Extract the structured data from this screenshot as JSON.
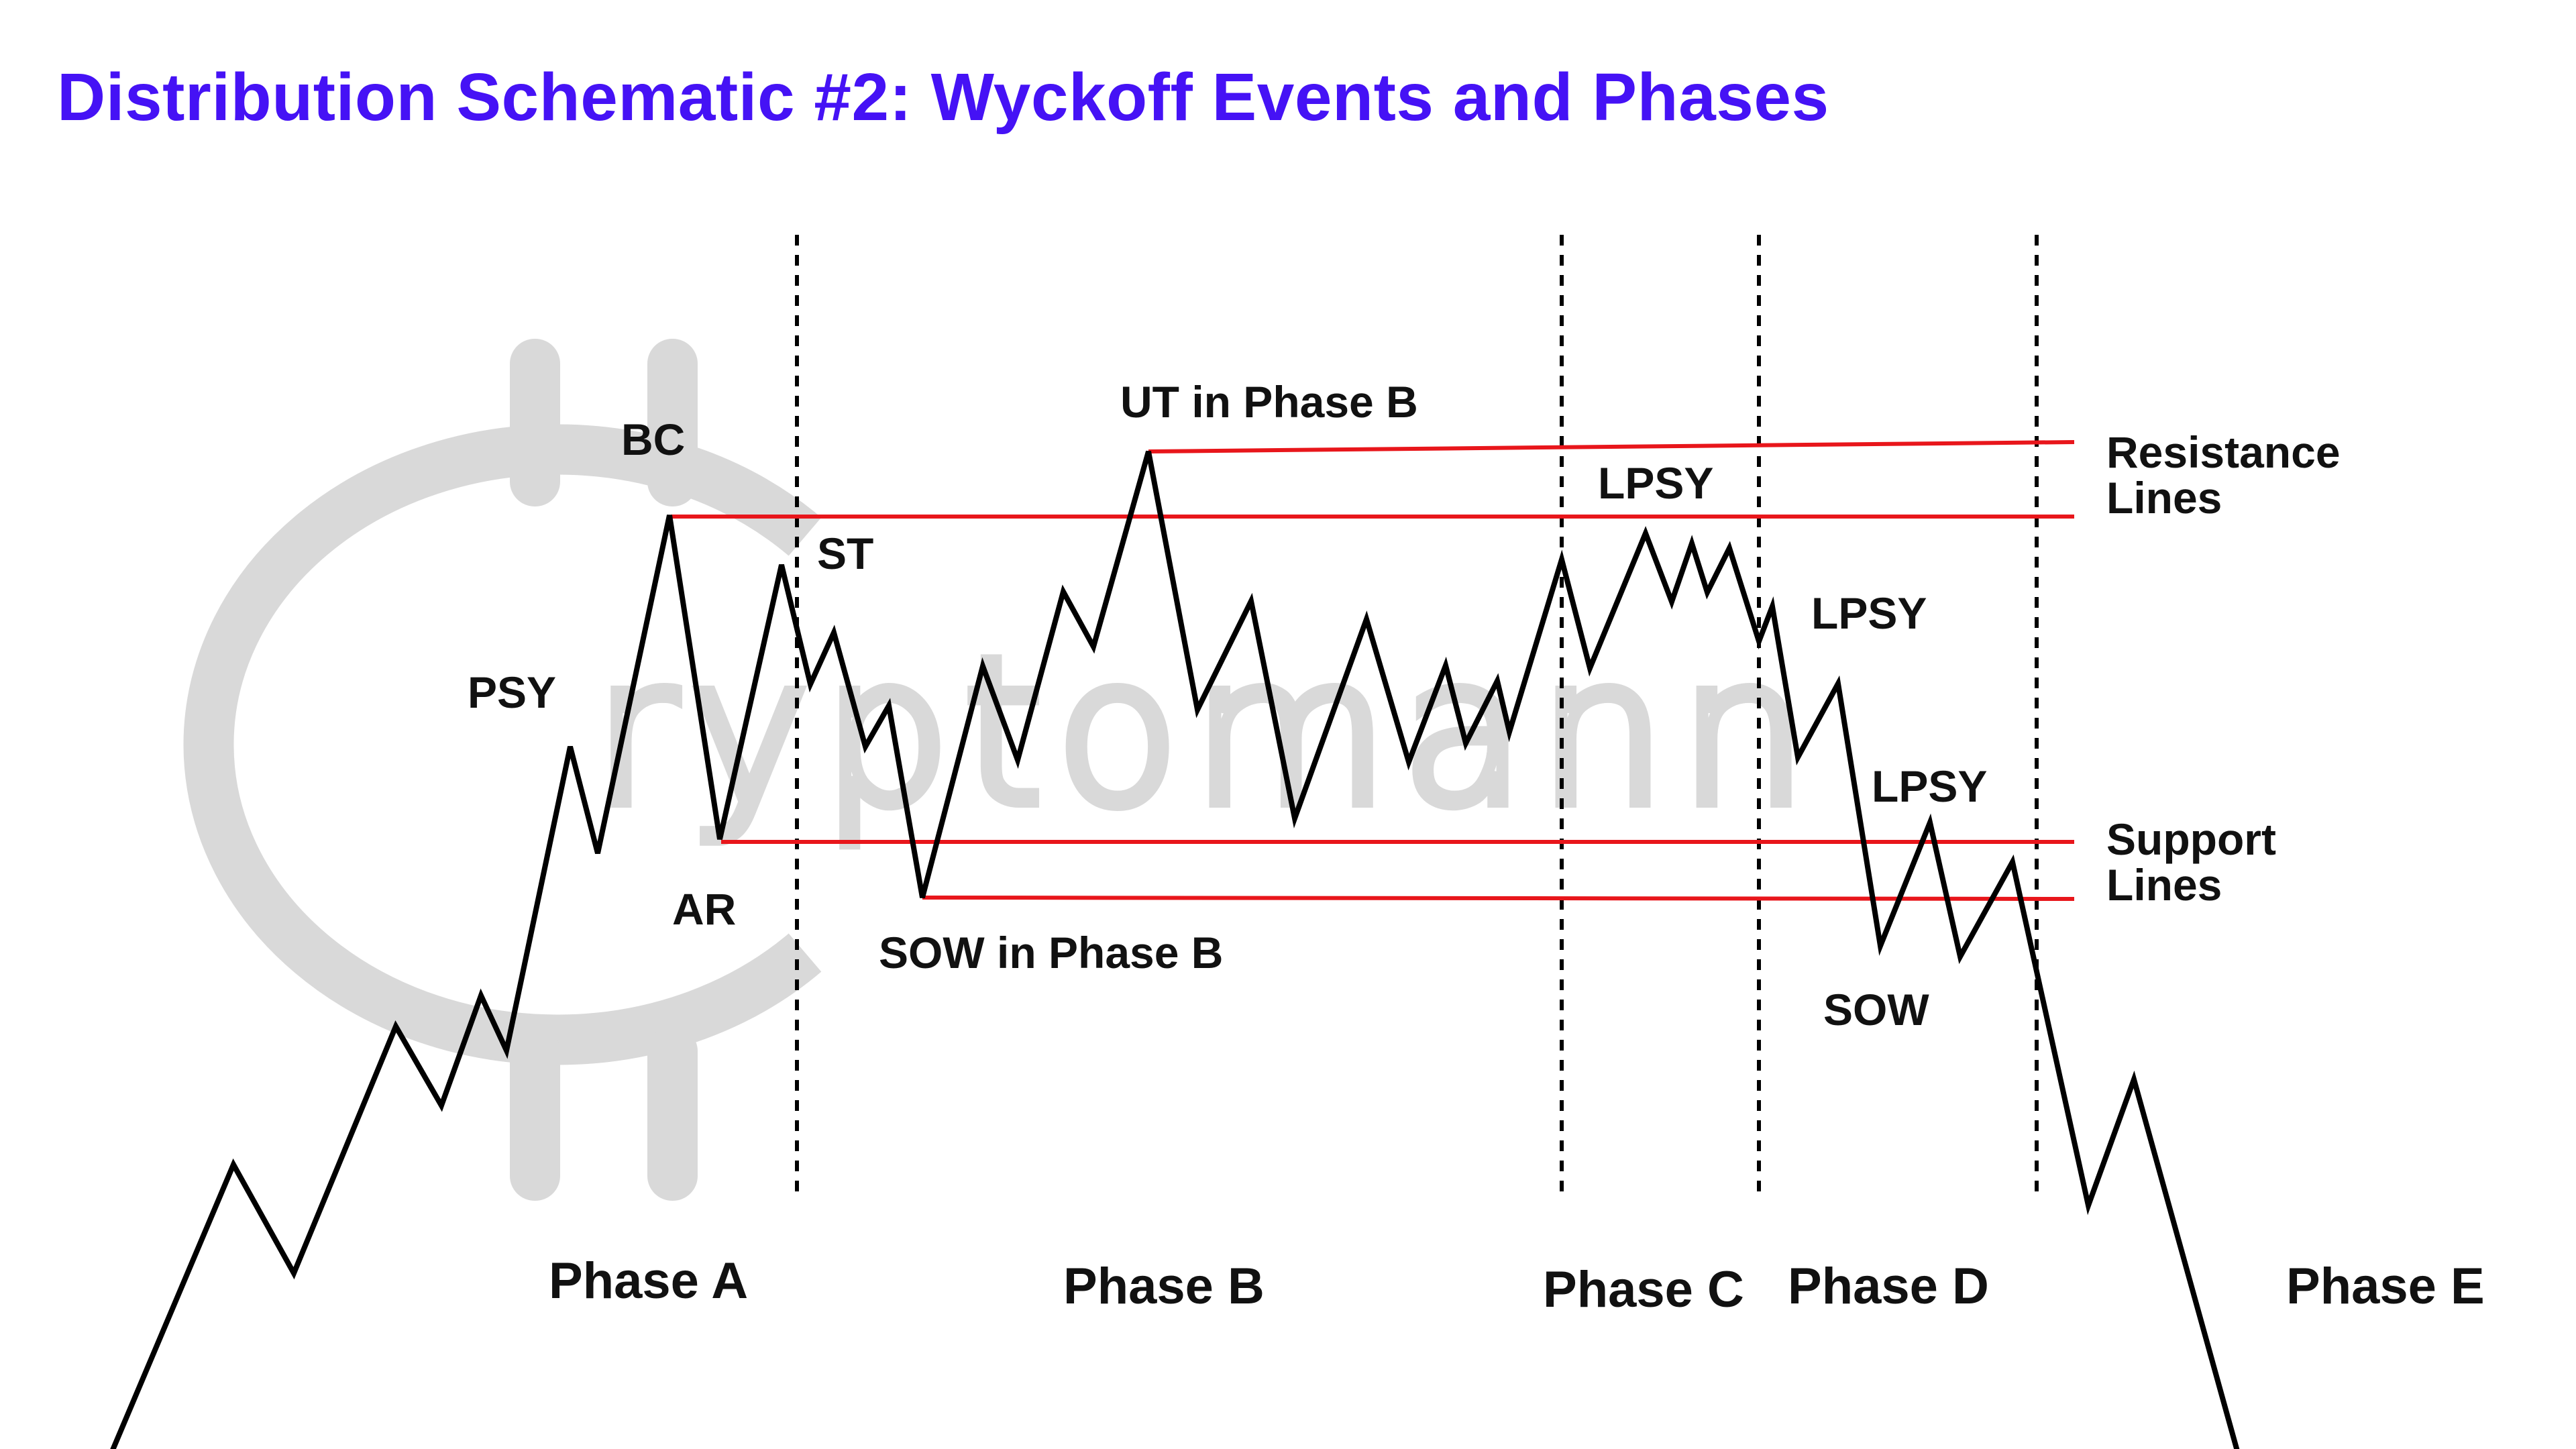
{
  "title": "Distribution Schematic #2: Wyckoff Events and Phases",
  "watermark": {
    "text": "ryptomann",
    "color": "#d9d9d9"
  },
  "colors": {
    "title": "#4512f5",
    "price_line": "#000000",
    "support_resistance": "#e8161b",
    "divider": "#000000"
  },
  "events": {
    "psy": "PSY",
    "bc": "BC",
    "ar": "AR",
    "st": "ST",
    "sow_phase_b": "SOW in Phase B",
    "ut_phase_b": "UT in Phase B",
    "lpsy_1": "LPSY",
    "lpsy_2": "LPSY",
    "lpsy_3": "LPSY",
    "sow": "SOW"
  },
  "line_labels": {
    "resistance_1": "Resistance",
    "resistance_2": "Lines",
    "support_1": "Support",
    "support_2": "Lines"
  },
  "phases": [
    "Phase A",
    "Phase B",
    "Phase C",
    "Phase D",
    "Phase E"
  ]
}
